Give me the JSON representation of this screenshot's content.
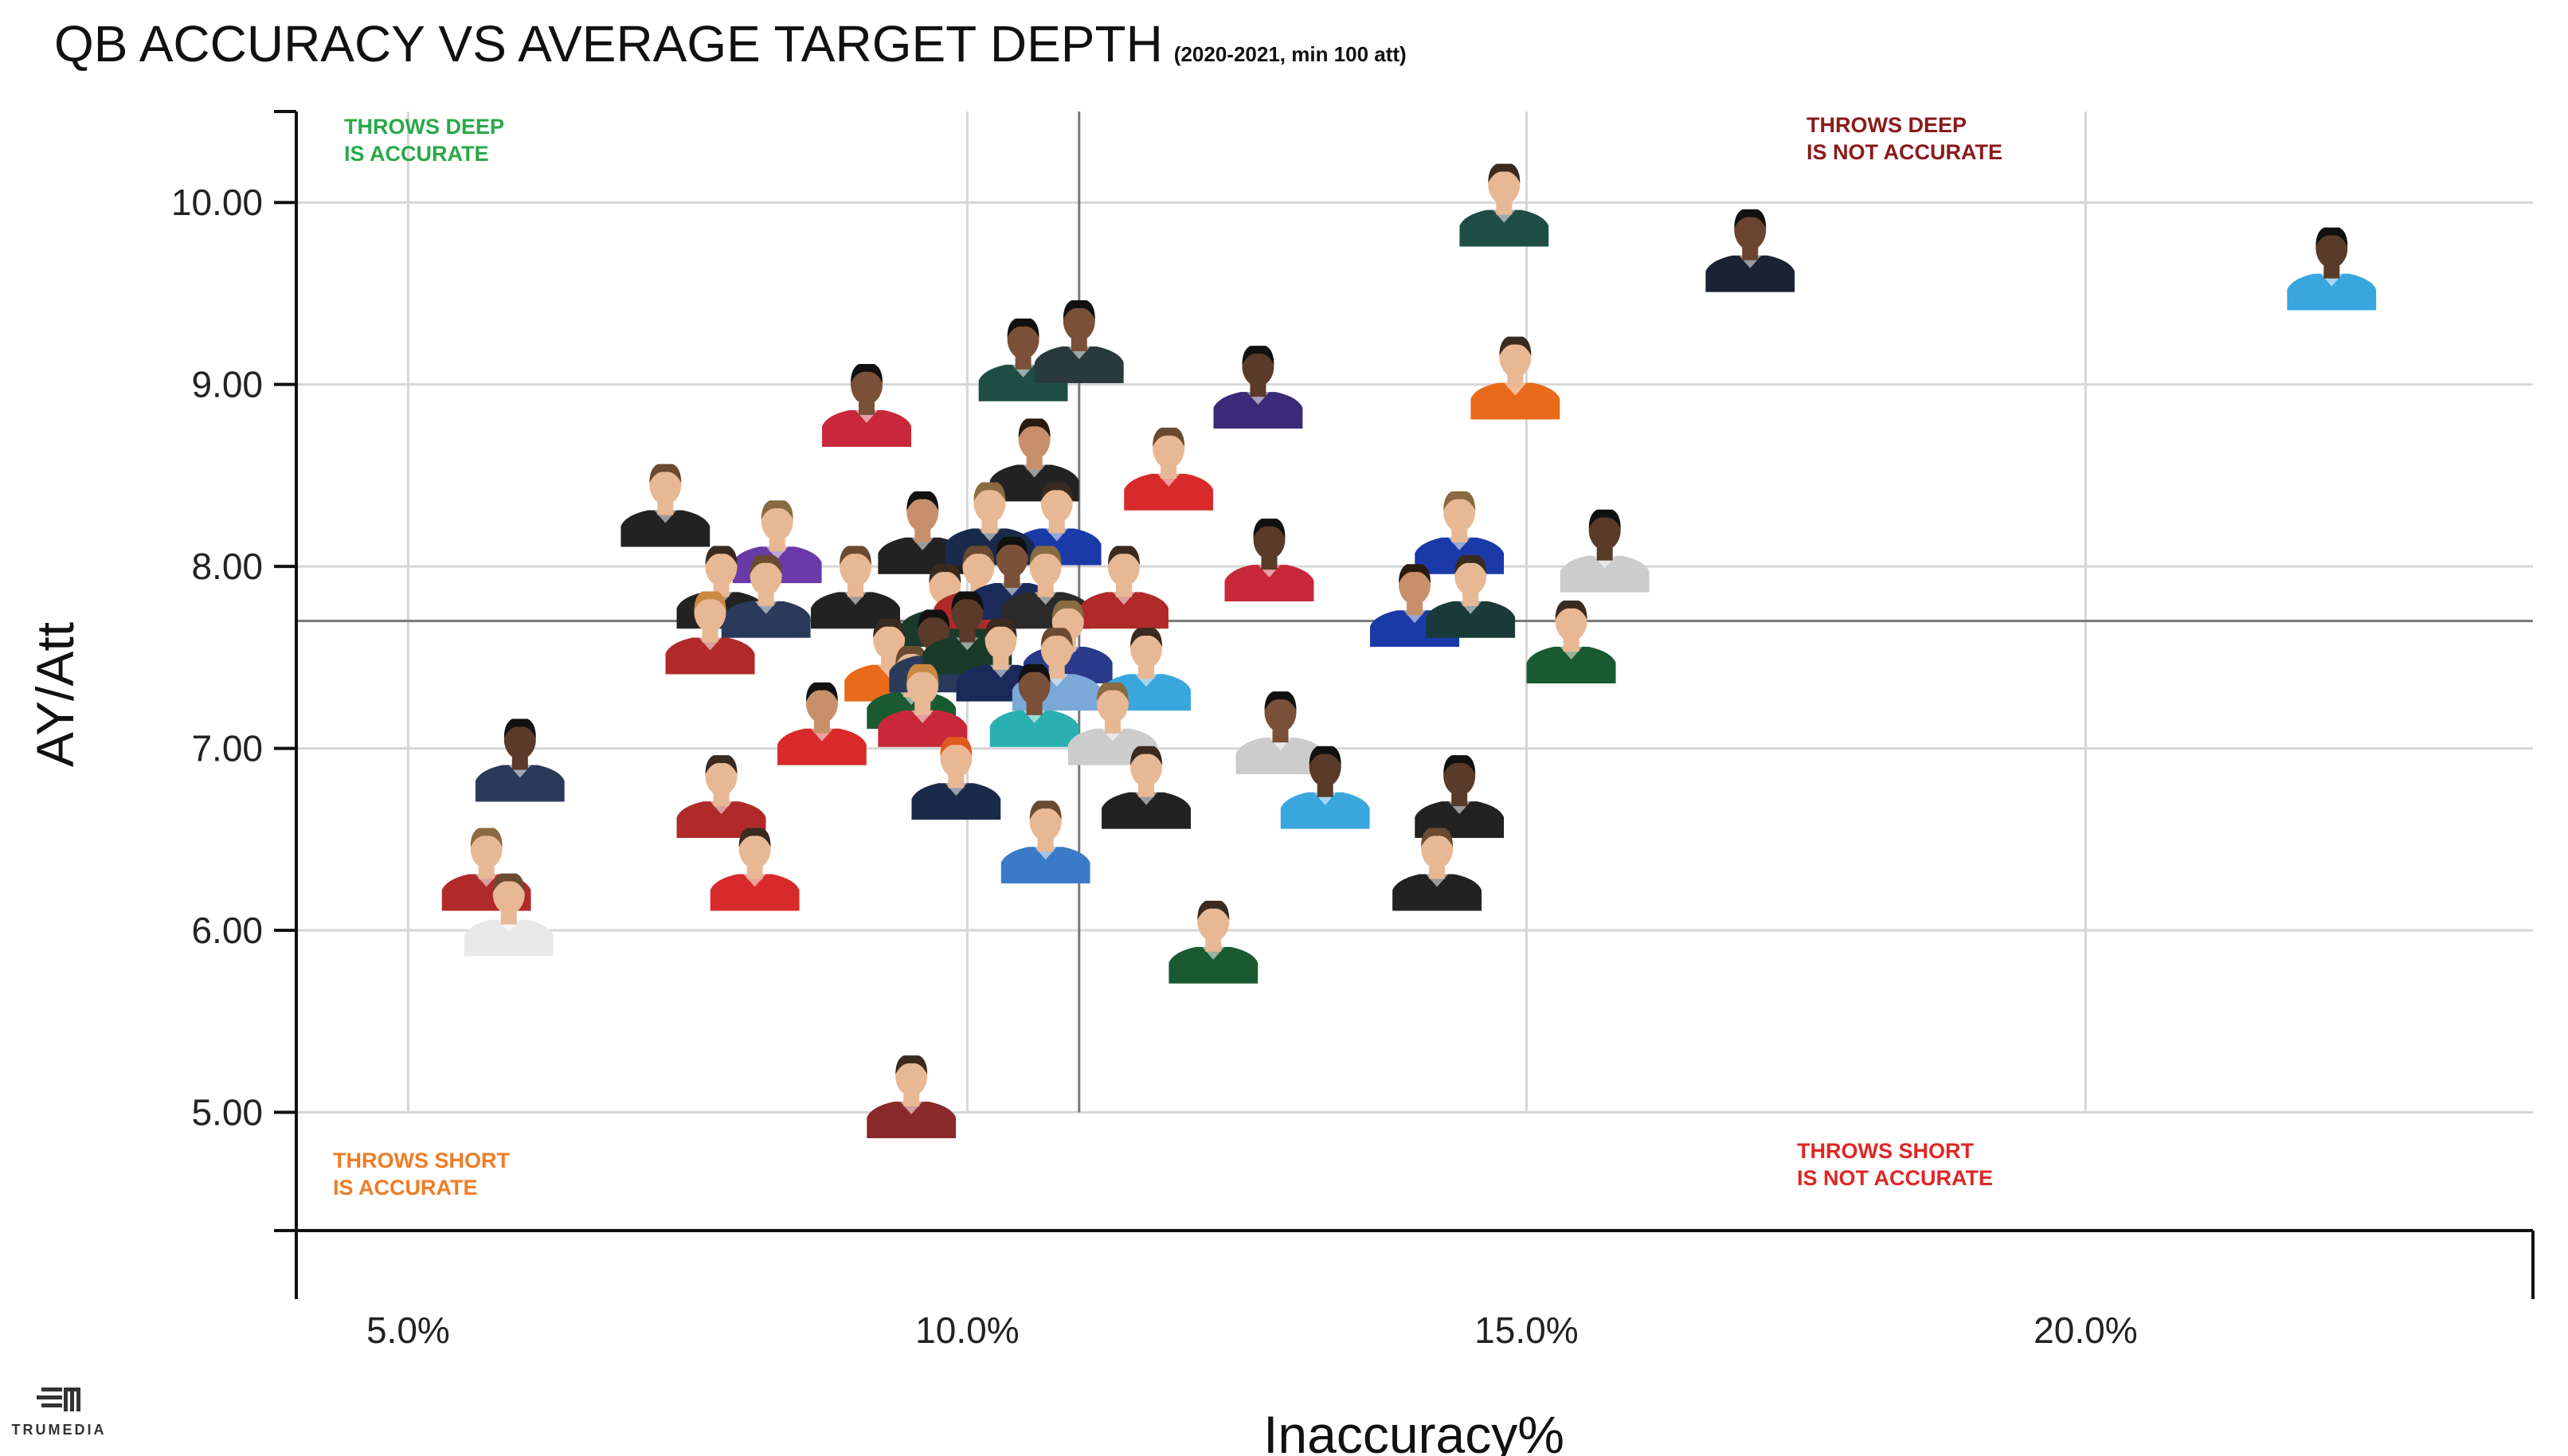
{
  "chart_data": {
    "type": "scatter",
    "title": "QB ACCURACY VS AVERAGE TARGET DEPTH",
    "subtitle": "(2020-2021, min 100 att)",
    "xlabel": "Inaccuracy%",
    "ylabel": "AY/Att",
    "xlim": [
      4.0,
      24.0
    ],
    "ylim": [
      4.35,
      10.5
    ],
    "x_ticks": [
      5.0,
      10.0,
      15.0,
      20.0
    ],
    "x_tick_labels": [
      "5.0%",
      "10.0%",
      "15.0%",
      "20.0%"
    ],
    "y_ticks": [
      5.0,
      6.0,
      7.0,
      8.0,
      9.0,
      10.0
    ],
    "y_tick_labels": [
      "5.00",
      "6.00",
      "7.00",
      "8.00",
      "9.00",
      "10.00"
    ],
    "grid": true,
    "reference_lines": {
      "x": 11.0,
      "y": 7.7
    },
    "quadrant_labels": [
      {
        "line1": "THROWS DEEP",
        "line2": "IS ACCURATE",
        "color": "#2aa84a",
        "position": "top-left"
      },
      {
        "line1": "THROWS DEEP",
        "line2": "IS NOT ACCURATE",
        "color": "#8b1a1a",
        "position": "top-right"
      },
      {
        "line1": "THROWS SHORT",
        "line2": "IS ACCURATE",
        "color": "#f07c24",
        "position": "bottom-left"
      },
      {
        "line1": "THROWS SHORT",
        "line2": "IS NOT ACCURATE",
        "color": "#e02626",
        "position": "bottom-right"
      }
    ],
    "points": [
      {
        "x": 14.8,
        "y": 9.95,
        "jersey": "#1e4d44",
        "skin": "#e8b894",
        "hair": "#3a2a20"
      },
      {
        "x": 17.0,
        "y": 9.7,
        "jersey": "#1b2235",
        "skin": "#6b4430",
        "hair": "#111111"
      },
      {
        "x": 22.2,
        "y": 9.6,
        "jersey": "#3aa6de",
        "skin": "#5a3a28",
        "hair": "#111111"
      },
      {
        "x": 14.9,
        "y": 9.0,
        "jersey": "#e86a1a",
        "skin": "#e8b894",
        "hair": "#3a2a20"
      },
      {
        "x": 12.6,
        "y": 8.95,
        "jersey": "#3b2a78",
        "skin": "#5a3a28",
        "hair": "#111111"
      },
      {
        "x": 10.5,
        "y": 9.1,
        "jersey": "#1e4d44",
        "skin": "#7a5038",
        "hair": "#111111"
      },
      {
        "x": 11.0,
        "y": 9.2,
        "jersey": "#2a3a3a",
        "skin": "#7a5038",
        "hair": "#111111"
      },
      {
        "x": 9.1,
        "y": 8.85,
        "jersey": "#c8283a",
        "skin": "#7a5038",
        "hair": "#111111"
      },
      {
        "x": 10.6,
        "y": 8.55,
        "jersey": "#222222",
        "skin": "#c8906a",
        "hair": "#2a1a10"
      },
      {
        "x": 11.8,
        "y": 8.5,
        "jersey": "#d82a2a",
        "skin": "#e8b894",
        "hair": "#6a4a30"
      },
      {
        "x": 10.8,
        "y": 8.2,
        "jersey": "#1a3aa8",
        "skin": "#e8b894",
        "hair": "#3a2a20"
      },
      {
        "x": 7.3,
        "y": 8.3,
        "jersey": "#222222",
        "skin": "#e8b894",
        "hair": "#6a4a30"
      },
      {
        "x": 8.3,
        "y": 8.1,
        "jersey": "#6a3aa8",
        "skin": "#e8b894",
        "hair": "#8a6a40"
      },
      {
        "x": 9.6,
        "y": 8.15,
        "jersey": "#222222",
        "skin": "#c8906a",
        "hair": "#111111"
      },
      {
        "x": 10.2,
        "y": 8.2,
        "jersey": "#1a2a4a",
        "skin": "#e8b894",
        "hair": "#8a6a40"
      },
      {
        "x": 14.4,
        "y": 8.15,
        "jersey": "#1a3aa8",
        "skin": "#e8b894",
        "hair": "#8a6a40"
      },
      {
        "x": 12.7,
        "y": 8.0,
        "jersey": "#c8283a",
        "skin": "#5a3a28",
        "hair": "#111111"
      },
      {
        "x": 15.7,
        "y": 8.05,
        "jersey": "#cccccc",
        "skin": "#5a3a28",
        "hair": "#111111"
      },
      {
        "x": 7.8,
        "y": 7.85,
        "jersey": "#222222",
        "skin": "#e8b894",
        "hair": "#3a2a20"
      },
      {
        "x": 8.2,
        "y": 7.8,
        "jersey": "#2a3a5a",
        "skin": "#e8b894",
        "hair": "#6a4a30"
      },
      {
        "x": 9.0,
        "y": 7.85,
        "jersey": "#222222",
        "skin": "#e8b894",
        "hair": "#6a4a30"
      },
      {
        "x": 9.8,
        "y": 7.75,
        "jersey": "#1a3a2a",
        "skin": "#e8b894",
        "hair": "#3a2a20"
      },
      {
        "x": 10.1,
        "y": 7.85,
        "jersey": "#b02a2a",
        "skin": "#e8b894",
        "hair": "#6a4a30"
      },
      {
        "x": 10.4,
        "y": 7.9,
        "jersey": "#1a2a5a",
        "skin": "#7a5038",
        "hair": "#111111"
      },
      {
        "x": 10.7,
        "y": 7.85,
        "jersey": "#2a2a2a",
        "skin": "#e8b894",
        "hair": "#8a6a40"
      },
      {
        "x": 11.4,
        "y": 7.85,
        "jersey": "#b02a2a",
        "skin": "#e8b894",
        "hair": "#3a2a20"
      },
      {
        "x": 14.0,
        "y": 7.75,
        "jersey": "#1a3aa8",
        "skin": "#c8906a",
        "hair": "#2a1a10"
      },
      {
        "x": 14.5,
        "y": 7.8,
        "jersey": "#1a3a3a",
        "skin": "#e8b894",
        "hair": "#3a2a20"
      },
      {
        "x": 15.4,
        "y": 7.55,
        "jersey": "#1a5a30",
        "skin": "#e8b894",
        "hair": "#3a2a20"
      },
      {
        "x": 7.7,
        "y": 7.6,
        "jersey": "#b02a2a",
        "skin": "#e8b894",
        "hair": "#c88a40"
      },
      {
        "x": 9.3,
        "y": 7.45,
        "jersey": "#e86a1a",
        "skin": "#e8b894",
        "hair": "#3a2a20"
      },
      {
        "x": 9.5,
        "y": 7.3,
        "jersey": "#1a5a30",
        "skin": "#e8b894",
        "hair": "#6a4a30"
      },
      {
        "x": 9.7,
        "y": 7.5,
        "jersey": "#2a3a5a",
        "skin": "#5a3a28",
        "hair": "#111111"
      },
      {
        "x": 10.0,
        "y": 7.6,
        "jersey": "#1a3a2a",
        "skin": "#5a3a28",
        "hair": "#111111"
      },
      {
        "x": 10.3,
        "y": 7.45,
        "jersey": "#1a2a5a",
        "skin": "#e8b894",
        "hair": "#3a2a20"
      },
      {
        "x": 10.9,
        "y": 7.55,
        "jersey": "#2a3a8a",
        "skin": "#e8b894",
        "hair": "#8a6a40"
      },
      {
        "x": 10.8,
        "y": 7.4,
        "jersey": "#7aa8d8",
        "skin": "#e8b894",
        "hair": "#6a4a30"
      },
      {
        "x": 11.6,
        "y": 7.4,
        "jersey": "#3aa6de",
        "skin": "#e8b894",
        "hair": "#3a2a20"
      },
      {
        "x": 8.7,
        "y": 7.1,
        "jersey": "#d82a2a",
        "skin": "#c8906a",
        "hair": "#111111"
      },
      {
        "x": 9.6,
        "y": 7.2,
        "jersey": "#c8283a",
        "skin": "#e8b894",
        "hair": "#c88a40"
      },
      {
        "x": 10.6,
        "y": 7.2,
        "jersey": "#2ab0b0",
        "skin": "#7a5038",
        "hair": "#111111"
      },
      {
        "x": 11.3,
        "y": 7.1,
        "jersey": "#cccccc",
        "skin": "#e8b894",
        "hair": "#8a6a40"
      },
      {
        "x": 12.8,
        "y": 7.05,
        "jersey": "#cccccc",
        "skin": "#7a5038",
        "hair": "#111111"
      },
      {
        "x": 6.0,
        "y": 6.9,
        "jersey": "#2a3a5a",
        "skin": "#5a3a28",
        "hair": "#111111"
      },
      {
        "x": 11.6,
        "y": 6.75,
        "jersey": "#222222",
        "skin": "#e8b894",
        "hair": "#3a2a20"
      },
      {
        "x": 9.9,
        "y": 6.8,
        "jersey": "#1a2a4a",
        "skin": "#e8b894",
        "hair": "#e05a20"
      },
      {
        "x": 13.2,
        "y": 6.75,
        "jersey": "#3aa6de",
        "skin": "#5a3a28",
        "hair": "#111111"
      },
      {
        "x": 14.4,
        "y": 6.7,
        "jersey": "#222222",
        "skin": "#5a3a28",
        "hair": "#111111"
      },
      {
        "x": 7.8,
        "y": 6.7,
        "jersey": "#b02a2a",
        "skin": "#e8b894",
        "hair": "#3a2a20"
      },
      {
        "x": 5.7,
        "y": 6.3,
        "jersey": "#b02a2a",
        "skin": "#e8b894",
        "hair": "#8a6a40"
      },
      {
        "x": 8.1,
        "y": 6.3,
        "jersey": "#d82a2a",
        "skin": "#e8b894",
        "hair": "#3a2a20"
      },
      {
        "x": 10.7,
        "y": 6.45,
        "jersey": "#3a7ac8",
        "skin": "#e8b894",
        "hair": "#6a4a30"
      },
      {
        "x": 14.2,
        "y": 6.3,
        "jersey": "#222222",
        "skin": "#e8b894",
        "hair": "#6a4a30"
      },
      {
        "x": 5.9,
        "y": 6.05,
        "jersey": "#e8e8e8",
        "skin": "#e8b894",
        "hair": "#6a4a30"
      },
      {
        "x": 12.2,
        "y": 5.9,
        "jersey": "#1a5a30",
        "skin": "#e8b894",
        "hair": "#3a2a20"
      },
      {
        "x": 9.5,
        "y": 5.05,
        "jersey": "#8a2a2a",
        "skin": "#e8b894",
        "hair": "#3a2a20"
      }
    ]
  },
  "brand": {
    "logo_text": "TRUMEDIA"
  }
}
